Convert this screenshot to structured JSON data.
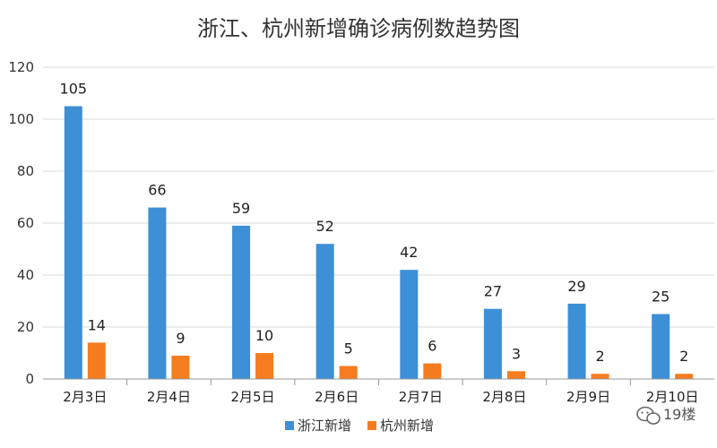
{
  "chart_data": {
    "type": "bar",
    "title": "浙江、杭州新增确诊病例数趋势图",
    "categories": [
      "2月3日",
      "2月4日",
      "2月5日",
      "2月6日",
      "2月7日",
      "2月8日",
      "2月9日",
      "2月10日"
    ],
    "series": [
      {
        "name": "浙江新增",
        "color": "#3d8fd6",
        "values": [
          105,
          66,
          59,
          52,
          42,
          27,
          29,
          25
        ]
      },
      {
        "name": "杭州新增",
        "color": "#f57c1f",
        "values": [
          14,
          9,
          10,
          5,
          6,
          3,
          2,
          2
        ]
      }
    ],
    "ylim": [
      0,
      120
    ],
    "yticks": [
      0,
      20,
      40,
      60,
      80,
      100,
      120
    ],
    "grid": true,
    "legend_position": "bottom"
  },
  "watermark": {
    "text": "19楼",
    "icon": "wechat-icon"
  }
}
